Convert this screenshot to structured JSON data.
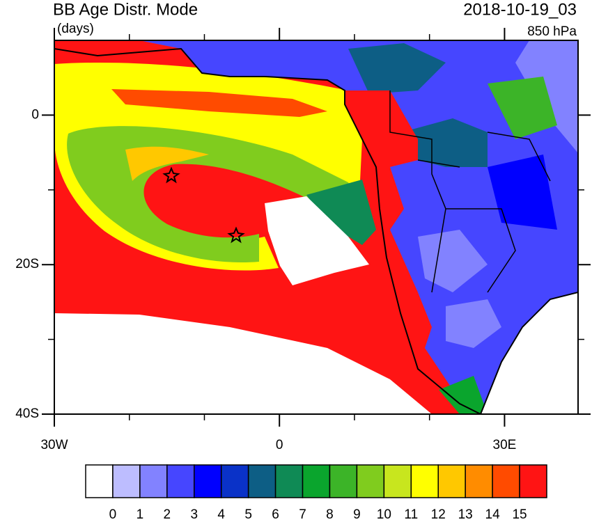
{
  "map_data": {
    "title": "BB Age Distr. Mode",
    "units": "(days)",
    "date": "2018-10-19_03",
    "level": "850 hPa",
    "xlim": [
      -30,
      39.8
    ],
    "ylim": [
      -40,
      10
    ],
    "xticks": [
      {
        "value": -30,
        "label": "30W"
      },
      0,
      {
        "value": 30,
        "label": "30E"
      }
    ],
    "yticks": [
      0,
      {
        "value": -20,
        "label": "20S"
      },
      {
        "value": -40,
        "label": "40S"
      }
    ],
    "xminorticks": [
      -20,
      -10,
      10,
      20
    ],
    "yminorticks": [
      -10,
      -30
    ],
    "colorbar": {
      "colors": [
        "#ffffff",
        "#bdbdff",
        "#8282ff",
        "#4646ff",
        "#0000ff",
        "#0a32c8",
        "#0d5e85",
        "#0f8a55",
        "#0aa52d",
        "#3cb428",
        "#80cc1e",
        "#c8e61e",
        "#ffff00",
        "#ffc800",
        "#ff8c00",
        "#ff4b00",
        "#ff1414"
      ],
      "labels": [
        0,
        1,
        2,
        3,
        4,
        5,
        6,
        7,
        8,
        9,
        10,
        11,
        12,
        13,
        14,
        15
      ]
    }
  }
}
